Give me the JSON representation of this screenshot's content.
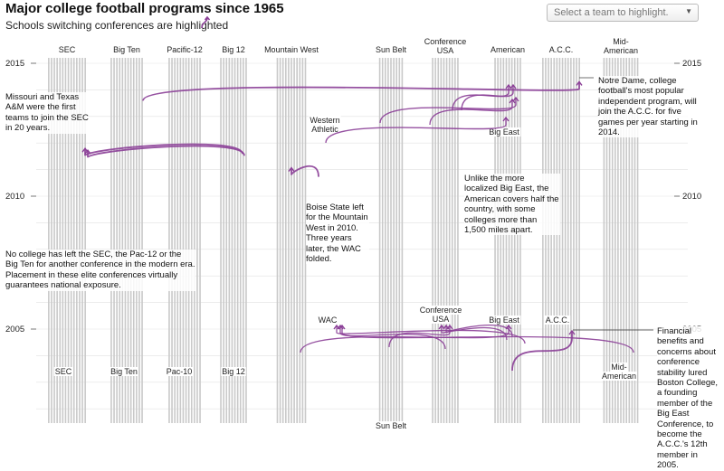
{
  "title": "Major college football programs since 1965",
  "subtitle": "Schools switching conferences are highlighted",
  "team_select": {
    "placeholder": "Select a team to highlight."
  },
  "colors": {
    "lane": "#c9c9c9",
    "highlight": "#8b3f97",
    "grid": "#e2e2e2",
    "text": "#222222"
  },
  "icons": {
    "subtitle": "curved-arrow-icon",
    "select": "chevron-down-icon"
  },
  "annotations": {
    "missouri": "Missouri and Texas A&M were the first teams to join the SEC in 20 years.",
    "notre_dame": "Notre Dame, college football's most popular independent program, will join the A.C.C. for five games per year starting in 2014.",
    "american": "Unlike the more localized Big East, the American covers half the country, with some colleges more than 1,500 miles apart.",
    "boise": "Boise State left for the Mountain West in 2010. Three years later, the WAC folded.",
    "elite": "No college has left the SEC, the Pac-12 or the Big Ten for another conference in the modern era. Placement in these elite conferences virtually guarantees national exposure.",
    "boston": "Financial benefits and concerns about conference stability lured Boston College, a founding member of the Big East Conference, to become the A.C.C.'s 12th member in 2005."
  },
  "chart_data": {
    "type": "flow",
    "title": "Major college football programs since 1965",
    "y_axis": {
      "labels": [
        "2015",
        "2010",
        "2005"
      ],
      "range": [
        2002,
        2016
      ]
    },
    "conferences_top": [
      {
        "name": "SEC",
        "lanes": 14
      },
      {
        "name": "Big Ten",
        "lanes": 12
      },
      {
        "name": "Pacific-12",
        "lanes": 12
      },
      {
        "name": "Big 12",
        "lanes": 10
      },
      {
        "name": "Mountain West",
        "lanes": 11
      },
      {
        "name": "Sun Belt",
        "lanes": 9
      },
      {
        "name": "Conference USA",
        "lanes": 10
      },
      {
        "name": "American",
        "lanes": 10
      },
      {
        "name": "A.C.C.",
        "lanes": 14
      },
      {
        "name": "Mid-American",
        "lanes": 13
      }
    ],
    "conferences_mid_labels": [
      "Western Athletic",
      "Big East",
      "WAC",
      "Conference USA",
      "Big East",
      "A.C.C."
    ],
    "conferences_bottom_labels": [
      "SEC",
      "Big Ten",
      "Pac-10",
      "Big 12",
      "Sun Belt",
      "Mid-American"
    ],
    "moves": [
      {
        "team": "Notre Dame",
        "from": "Independent",
        "to": "A.C.C.",
        "year": 2014
      },
      {
        "team": "Missouri",
        "from": "Big 12",
        "to": "SEC",
        "year": 2012
      },
      {
        "team": "Texas A&M",
        "from": "Big 12",
        "to": "SEC",
        "year": 2012
      },
      {
        "team": "Boise State",
        "from": "Western Athletic",
        "to": "Mountain West",
        "year": 2011
      },
      {
        "team": "Boston College",
        "from": "Big East",
        "to": "A.C.C.",
        "year": 2005
      }
    ]
  }
}
